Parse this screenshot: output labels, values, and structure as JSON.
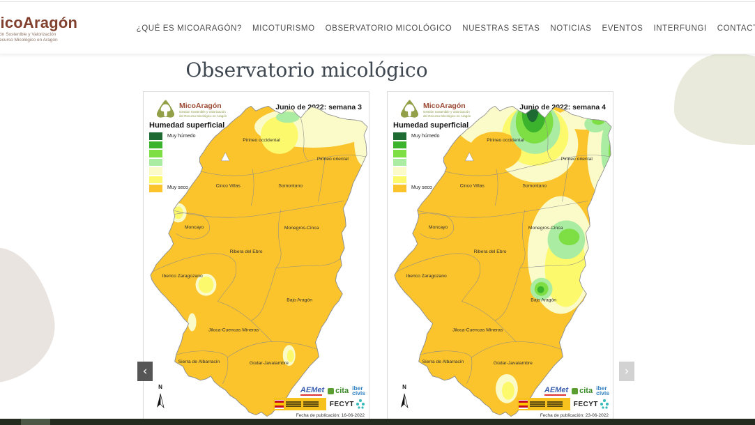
{
  "header": {
    "logo": {
      "title": "MicoAragón",
      "subtitle_line1": "Gestión Sostenible y Valorización",
      "subtitle_line2": "del Recurso Micológico en Aragón"
    },
    "nav": [
      "¿QUÉ ES MICOARAGÓN?",
      "MICOTURISMO",
      "OBSERVATORIO MICOLÓGICO",
      "NUESTRAS SETAS",
      "NOTICIAS",
      "EVENTOS",
      "INTERFUNGI",
      "CONTACTO"
    ]
  },
  "page": {
    "title": "Observatorio micológico"
  },
  "carousel": {
    "prev_label": "‹",
    "next_label": "›"
  },
  "map_shared": {
    "logo_title": "MicoAragón",
    "logo_subtitle_line1": "Gestión Sostenible y Valorización",
    "logo_subtitle_line2": "del Recurso Micológico en Aragón",
    "legend_title": "Humedad superficial",
    "legend_max_label": "Muy húmedo",
    "legend_min_label": "Muy seco",
    "legend_colors": [
      "#1d6a33",
      "#3cb32d",
      "#7ddf44",
      "#a9eca2",
      "#fafbc8",
      "#fdf96d",
      "#fbc42d"
    ],
    "map_base_color": "#fbc42d",
    "north_label": "N",
    "regions": [
      "Pirineo occidental",
      "Pirineo oriental",
      "Cinco Villas",
      "Somontano",
      "Moncayo",
      "Monegros-Cinca",
      "Ribera del Ebro",
      "Iberico Zaragozano",
      "Bajo Aragón",
      "Jiloca-Cuencas Mineras",
      "Sierra de Albarracín",
      "Gúdar-Javalambre"
    ],
    "logos": {
      "aemet": "AEMet",
      "cita": "cita",
      "ibercivis_line1": "iber",
      "ibercivis_line2": "civis",
      "fecyt": "FECYT"
    }
  },
  "panels": [
    {
      "title": "Junio de 2022: semana 3",
      "publication": "Fecha de publicación: 16-06-2022"
    },
    {
      "title": "Junio de 2022: semana 4",
      "publication": "Fecha de publicación: 23-06-2022"
    }
  ]
}
